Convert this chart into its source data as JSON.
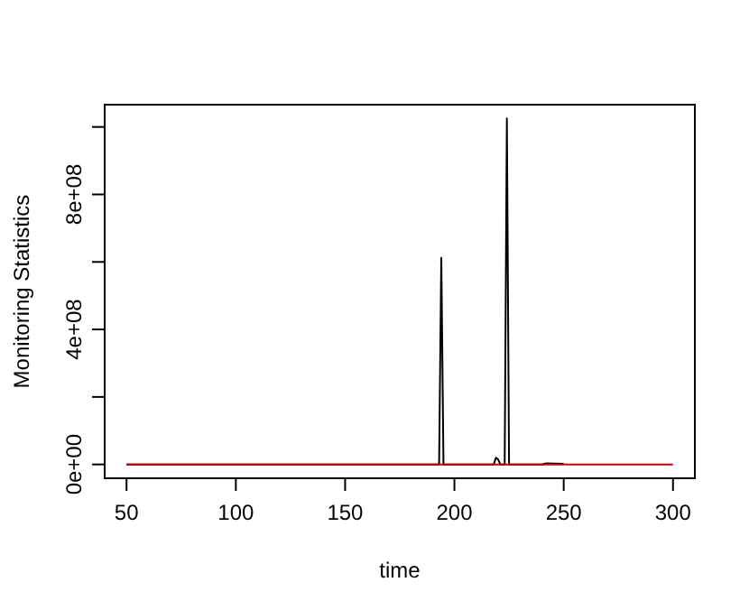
{
  "chart_data": {
    "type": "line",
    "xlabel": "time",
    "ylabel": "Monitoring Statistics",
    "xlim": [
      40,
      310
    ],
    "ylim": [
      -41000000,
      1066000000
    ],
    "xticks": [
      50,
      100,
      150,
      200,
      250,
      300
    ],
    "yticks": [
      {
        "value": 0,
        "label": "0e+00"
      },
      {
        "value": 200000000,
        "label": null
      },
      {
        "value": 400000000,
        "label": "4e+08"
      },
      {
        "value": 600000000,
        "label": null
      },
      {
        "value": 800000000,
        "label": "8e+08"
      },
      {
        "value": 1000000000,
        "label": null
      }
    ],
    "grid": false,
    "marker": "none",
    "line_style": "solid",
    "series": [
      {
        "color": "#000000",
        "x": [
          50,
          193,
          194,
          195,
          218,
          219,
          220,
          221,
          223,
          224,
          225,
          240,
          242,
          250
        ],
        "values": [
          0,
          0,
          612000000,
          0,
          0,
          20000000,
          15000000,
          0,
          0,
          1025000000,
          0,
          0,
          3000000,
          2000000
        ]
      },
      {
        "color": "#cc0000",
        "x": [
          50,
          300
        ],
        "values": [
          0,
          0
        ]
      }
    ]
  }
}
